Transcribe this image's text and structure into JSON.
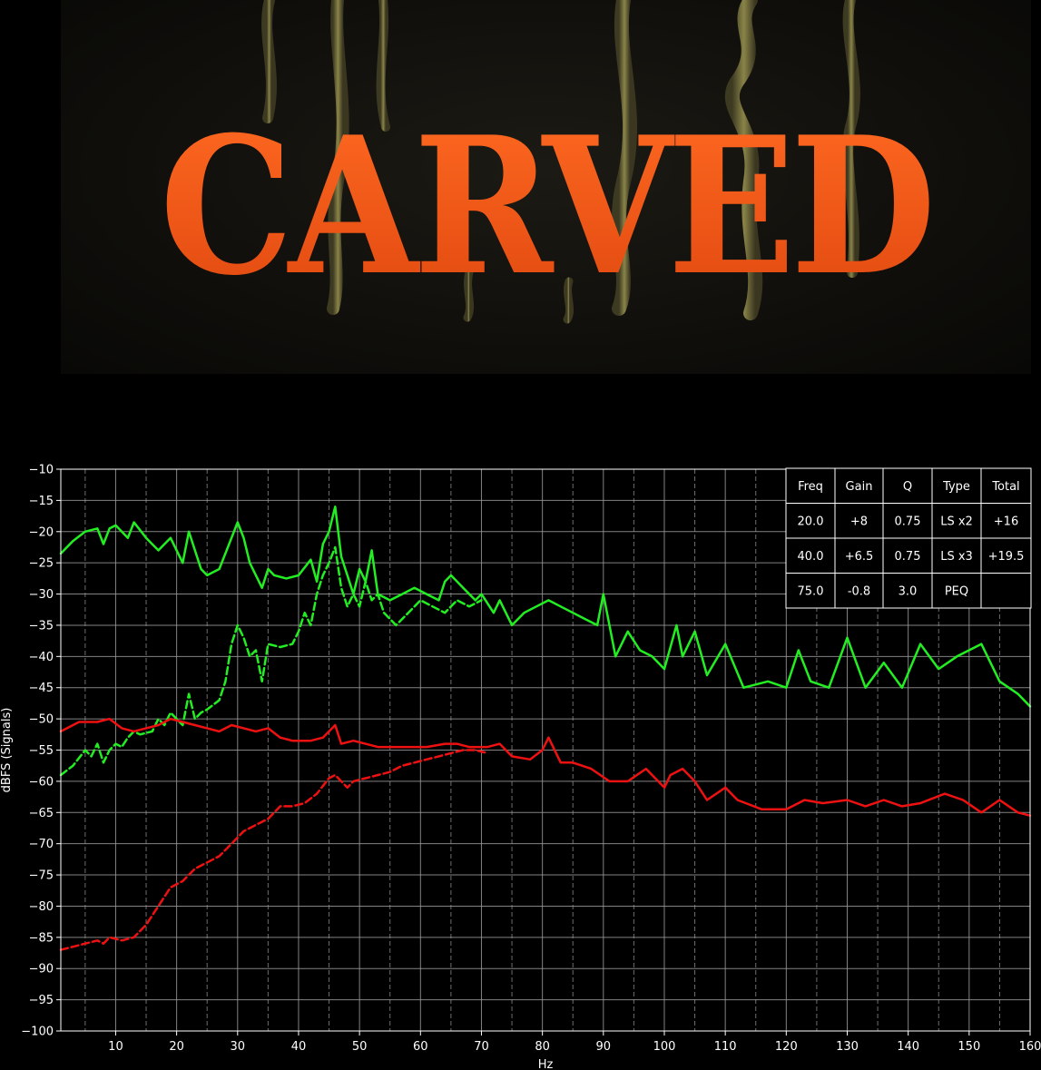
{
  "poster": {
    "title": "CARVED",
    "title_color": "#ff5a1a",
    "background": "#0e0d0a"
  },
  "chart_data": {
    "type": "line",
    "xlabel": "Hz",
    "ylabel": "dBFS (Signals)",
    "xlim": [
      1,
      160
    ],
    "ylim": [
      -100,
      -10
    ],
    "xticks": [
      10,
      20,
      30,
      40,
      50,
      60,
      70,
      80,
      90,
      100,
      110,
      120,
      130,
      140,
      150,
      160
    ],
    "yticks": [
      -10,
      -15,
      -20,
      -25,
      -30,
      -35,
      -40,
      -45,
      -50,
      -55,
      -60,
      -65,
      -70,
      -75,
      -80,
      -85,
      -90,
      -95,
      -100
    ],
    "grid": true,
    "background": "#000000",
    "series": [
      {
        "color": "#22ee22",
        "style": "solid",
        "x": [
          1,
          3,
          5,
          7,
          8,
          9,
          10,
          12,
          13,
          15,
          17,
          19,
          21,
          22,
          24,
          25,
          27,
          29,
          30,
          31,
          32,
          34,
          35,
          36,
          38,
          40,
          42,
          43,
          44,
          45,
          46,
          47,
          48,
          49,
          50,
          51,
          52,
          53,
          55,
          57,
          59,
          61,
          63,
          64,
          65,
          67,
          69,
          70,
          72,
          73,
          75,
          77,
          79,
          81,
          83,
          85,
          87,
          89,
          90,
          92,
          94,
          96,
          98,
          100,
          102,
          103,
          105,
          107,
          110,
          113,
          117,
          120,
          122,
          124,
          127,
          130,
          133,
          136,
          139,
          142,
          145,
          148,
          152,
          155,
          158,
          160
        ],
        "y": [
          -23.5,
          -21.5,
          -20,
          -19.5,
          -22,
          -19.5,
          -19,
          -21,
          -18.5,
          -21,
          -23,
          -21,
          -25,
          -20,
          -26,
          -27,
          -26,
          -21,
          -18.5,
          -21,
          -25,
          -29,
          -26,
          -27,
          -27.5,
          -27,
          -24.5,
          -28,
          -22,
          -20,
          -16,
          -24,
          -27,
          -30,
          -26,
          -28,
          -23,
          -30,
          -31,
          -30,
          -29,
          -30,
          -31,
          -28,
          -27,
          -29,
          -31,
          -30,
          -33,
          -31,
          -35,
          -33,
          -32,
          -31,
          -32,
          -33,
          -34,
          -35,
          -30,
          -40,
          -36,
          -39,
          -40,
          -42,
          -35,
          -40,
          -36,
          -43,
          -38,
          -45,
          -44,
          -45,
          -39,
          -44,
          -45,
          -37,
          -45,
          -41,
          -45,
          -38,
          -42,
          -40,
          -38,
          -44,
          -46,
          -48
        ]
      },
      {
        "color": "#22ee22",
        "style": "dashed",
        "x": [
          1,
          3,
          5,
          6,
          7,
          8,
          9,
          10,
          11,
          12,
          13,
          14,
          16,
          17,
          18,
          19,
          20,
          21,
          22,
          23,
          24,
          25,
          27,
          28,
          29,
          30,
          31,
          32,
          33,
          34,
          35,
          37,
          39,
          40,
          41,
          42,
          43,
          44,
          45,
          46,
          47,
          48,
          49,
          50,
          51,
          52,
          53,
          54,
          56,
          58,
          60,
          62,
          64,
          66,
          68,
          70
        ],
        "y": [
          -59,
          -57.5,
          -55,
          -56,
          -54,
          -57,
          -55,
          -54,
          -54.5,
          -53,
          -52,
          -52.5,
          -52,
          -50,
          -51,
          -49,
          -50,
          -51,
          -46,
          -50,
          -49,
          -48.5,
          -47,
          -44,
          -38,
          -35,
          -37,
          -40,
          -39,
          -44,
          -38,
          -38.5,
          -38,
          -36,
          -33,
          -35,
          -30,
          -27,
          -25,
          -22.5,
          -29,
          -32,
          -30,
          -32,
          -28,
          -31,
          -30,
          -33,
          -35,
          -33,
          -31,
          -32,
          -33,
          -31,
          -32,
          -31
        ]
      },
      {
        "color": "#ee1111",
        "style": "solid",
        "x": [
          1,
          4,
          7,
          9,
          11,
          13,
          15,
          17,
          19,
          21,
          23,
          25,
          27,
          29,
          31,
          33,
          35,
          37,
          39,
          42,
          44,
          46,
          47,
          49,
          51,
          53,
          55,
          58,
          61,
          64,
          66,
          68,
          71,
          73,
          75,
          78,
          80,
          81,
          83,
          85,
          88,
          91,
          94,
          97,
          100,
          101,
          103,
          105,
          107,
          110,
          112,
          116,
          120,
          123,
          126,
          130,
          133,
          136,
          139,
          142,
          146,
          149,
          152,
          155,
          158,
          160
        ],
        "y": [
          -52,
          -50.5,
          -50.5,
          -50,
          -51.5,
          -52,
          -51.5,
          -51,
          -50,
          -50.5,
          -51,
          -51.5,
          -52,
          -51,
          -51.5,
          -52,
          -51.5,
          -53,
          -53.5,
          -53.5,
          -53,
          -51,
          -54,
          -53.5,
          -54,
          -54.5,
          -54.5,
          -54.5,
          -54.5,
          -54,
          -54,
          -54.5,
          -54.5,
          -54,
          -56,
          -56.5,
          -55,
          -53,
          -57,
          -57,
          -58,
          -60,
          -60,
          -58,
          -61,
          -59,
          -58,
          -60,
          -63,
          -61,
          -63,
          -64.5,
          -64.5,
          -63,
          -63.5,
          -63,
          -64,
          -63,
          -64,
          -63.5,
          -62,
          -63,
          -65,
          -63,
          -65,
          -65.5
        ]
      },
      {
        "color": "#ee1111",
        "style": "dashed",
        "x": [
          1,
          3,
          5,
          7,
          8,
          9,
          11,
          13,
          15,
          17,
          19,
          21,
          23,
          25,
          27,
          29,
          31,
          33,
          35,
          37,
          39,
          41,
          43,
          45,
          46,
          47,
          48,
          49,
          51,
          53,
          55,
          57,
          59,
          61,
          63,
          65,
          67,
          69,
          71
        ],
        "y": [
          -87,
          -86.5,
          -86,
          -85.5,
          -86,
          -85,
          -85.5,
          -85,
          -83,
          -80,
          -77,
          -76,
          -74,
          -73,
          -72,
          -70,
          -68,
          -67,
          -66,
          -64,
          -64,
          -63.5,
          -62,
          -59.5,
          -59,
          -60,
          -61,
          -60,
          -59.5,
          -59,
          -58.5,
          -57.5,
          -57,
          -56.5,
          -56,
          -55.5,
          -55,
          -55,
          -55.5
        ]
      }
    ],
    "table": {
      "headers": [
        "Freq",
        "Gain",
        "Q",
        "Type",
        "Total"
      ],
      "rows": [
        [
          "20.0",
          "+8",
          "0.75",
          "LS x2",
          "+16"
        ],
        [
          "40.0",
          "+6.5",
          "0.75",
          "LS x3",
          "+19.5"
        ],
        [
          "75.0",
          "-0.8",
          "3.0",
          "PEQ",
          ""
        ]
      ],
      "placement": "top-right"
    }
  }
}
